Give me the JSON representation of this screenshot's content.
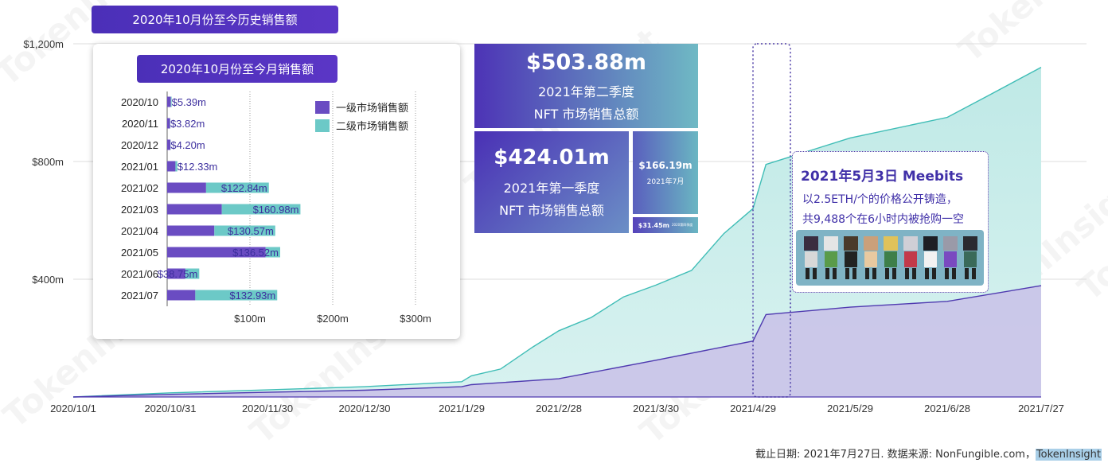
{
  "chart_data": [
    {
      "type": "area",
      "title": "2020年10月份至今历史销售额",
      "x_ticks": [
        "2020/10/1",
        "2020/10/31",
        "2020/11/30",
        "2020/12/30",
        "2021/1/29",
        "2021/2/28",
        "2021/3/30",
        "2021/4/29",
        "2021/5/29",
        "2021/6/28",
        "2021/7/27"
      ],
      "y_ticks": [
        "$400m",
        "$800m",
        "$1,200m"
      ],
      "ylim": [
        0,
        1200
      ],
      "grid": true,
      "series": [
        {
          "type": "area",
          "color": "#6fcfcb",
          "points": [
            [
              "2020/10/1",
              0
            ],
            [
              "2020/10/31",
              14
            ],
            [
              "2020/11/30",
              24
            ],
            [
              "2020/12/30",
              35
            ],
            [
              "2021/1/29",
              52
            ],
            [
              "2021/2/1",
              72
            ],
            [
              "2021/2/10",
              95
            ],
            [
              "2021/2/20",
              170
            ],
            [
              "2021/2/28",
              225
            ],
            [
              "2021/3/10",
              270
            ],
            [
              "2021/3/20",
              340
            ],
            [
              "2021/3/30",
              380
            ],
            [
              "2021/4/10",
              430
            ],
            [
              "2021/4/20",
              555
            ],
            [
              "2021/4/29",
              640
            ],
            [
              "2021/5/3",
              790
            ],
            [
              "2021/5/29",
              880
            ],
            [
              "2021/6/28",
              950
            ],
            [
              "2021/7/10",
              1020
            ],
            [
              "2021/7/27",
              1120
            ]
          ]
        },
        {
          "type": "area",
          "color": "#c9c1e8",
          "points": [
            [
              "2020/10/1",
              0
            ],
            [
              "2020/10/31",
              9
            ],
            [
              "2020/11/30",
              16
            ],
            [
              "2020/12/30",
              23
            ],
            [
              "2021/1/29",
              35
            ],
            [
              "2021/2/1",
              42
            ],
            [
              "2021/2/28",
              62
            ],
            [
              "2021/3/30",
              125
            ],
            [
              "2021/4/29",
              190
            ],
            [
              "2021/5/3",
              280
            ],
            [
              "2021/5/29",
              305
            ],
            [
              "2021/6/28",
              325
            ],
            [
              "2021/7/27",
              378
            ]
          ]
        }
      ],
      "callout": {
        "title": "2021年5月3日 Meebits",
        "line1": "以2.5ETH/个的价格公开铸造，",
        "line2": "共9,488个在6小时内被抢购一空"
      }
    },
    {
      "type": "bar",
      "title": "2020年10月份至今月销售额",
      "categories": [
        "2020/10",
        "2020/11",
        "2020/12",
        "2021/01",
        "2021/02",
        "2021/03",
        "2021/04",
        "2021/05",
        "2021/06",
        "2021/07"
      ],
      "x_ticks": [
        "$100m",
        "$200m",
        "$300m"
      ],
      "xlim": [
        0,
        320
      ],
      "legend_position": "top-right",
      "series": [
        {
          "name": "一级市场销售额",
          "color": "#6a4cc2",
          "values": [
            4.5,
            3.5,
            4,
            10,
            47,
            66,
            57,
            119,
            22,
            34
          ]
        },
        {
          "name": "二级市场销售额",
          "color": "#6cc9c7",
          "values": [
            0.9,
            0.3,
            0.2,
            2.3,
            75.84,
            94.98,
            73.57,
            17.52,
            16.75,
            98.93
          ]
        }
      ],
      "totals": [
        "$5.39m",
        "$3.82m",
        "$4.20m",
        "$12.33m",
        "$122.84m",
        "$160.98m",
        "$130.57m",
        "$136.52m",
        "$38.75m",
        "$132.93m"
      ]
    }
  ],
  "stats": {
    "q2_value": "$503.88m",
    "q2_line1": "2021年第二季度",
    "q2_line2": "NFT 市场销售总额",
    "q1_value": "$424.01m",
    "q1_line1": "2021年第一季度",
    "q1_line2": "NFT 市场销售总额",
    "jul_value": "$166.19m",
    "jul_label": "2021年7月",
    "small_value": "$31.45m",
    "small_label": "2020第四季度"
  },
  "footer": {
    "prefix": "截止日期: 2021年7月27日. 数据来源: NonFungible.com，",
    "highlight": "TokenInsight"
  },
  "watermark": "TokenInsight"
}
